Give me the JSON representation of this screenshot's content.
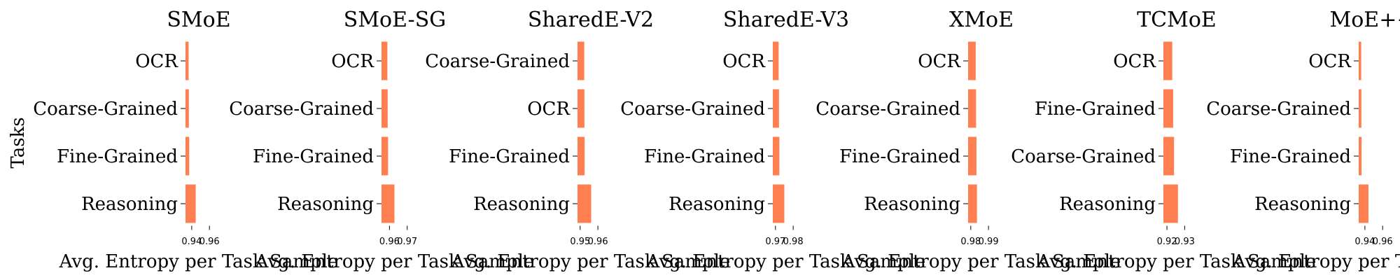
{
  "figure": {
    "shared_ylabel": "Tasks",
    "bar_color": "#ff7f50"
  },
  "chart_data": [
    {
      "type": "bar",
      "orientation": "horizontal",
      "title": "SMoE",
      "xlabel": "Avg. Entropy per Task Sample",
      "ylabel": "Tasks",
      "categories": [
        "OCR",
        "Coarse-Grained",
        "Fine-Grained",
        "Reasoning"
      ],
      "values": [
        0.9365,
        0.9368,
        0.9372,
        0.9445
      ],
      "xticks": [
        "0.94",
        "0.96"
      ],
      "xtick_values": [
        0.94,
        0.96
      ],
      "xlim": [
        0.933,
        0.963
      ],
      "grid": false
    },
    {
      "type": "bar",
      "orientation": "horizontal",
      "title": "SMoE-SG",
      "xlabel": "Avg. Entropy per Task Sample",
      "categories": [
        "OCR",
        "Coarse-Grained",
        "Fine-Grained",
        "Reasoning"
      ],
      "values": [
        0.9588,
        0.959,
        0.9592,
        0.9628
      ],
      "xticks": [
        "0.96",
        "0.97"
      ],
      "xtick_values": [
        0.96,
        0.97
      ],
      "xlim": [
        0.9555,
        0.9705
      ],
      "grid": false
    },
    {
      "type": "bar",
      "orientation": "horizontal",
      "title": "SharedE-V2",
      "xlabel": "Avg. Entropy per Task Sample",
      "categories": [
        "Coarse-Grained",
        "OCR",
        "Fine-Grained",
        "Reasoning"
      ],
      "values": [
        0.9523,
        0.9524,
        0.9525,
        0.9562
      ],
      "xticks": [
        "0.95",
        "0.96"
      ],
      "xtick_values": [
        0.95,
        0.96
      ],
      "xlim": [
        0.9485,
        0.9635
      ],
      "grid": false
    },
    {
      "type": "bar",
      "orientation": "horizontal",
      "title": "SharedE-V3",
      "xlabel": "Avg. Entropy per Task Sample",
      "categories": [
        "OCR",
        "Coarse-Grained",
        "Fine-Grained",
        "Reasoning"
      ],
      "values": [
        0.9718,
        0.972,
        0.9722,
        0.975
      ],
      "xticks": [
        "0.97",
        "0.98"
      ],
      "xtick_values": [
        0.97,
        0.98
      ],
      "xlim": [
        0.9685,
        0.9835
      ],
      "grid": false
    },
    {
      "type": "bar",
      "orientation": "horizontal",
      "title": "XMoE",
      "xlabel": "Avg. Entropy per Task Sample",
      "categories": [
        "OCR",
        "Coarse-Grained",
        "Fine-Grained",
        "Reasoning"
      ],
      "values": [
        0.9828,
        0.983,
        0.9832,
        0.9835
      ],
      "xticks": [
        "0.98",
        "0.99"
      ],
      "xtick_values": [
        0.98,
        0.99
      ],
      "xlim": [
        0.9785,
        0.9935
      ],
      "grid": false
    },
    {
      "type": "bar",
      "orientation": "horizontal",
      "title": "TCMoE",
      "xlabel": "Avg. Entropy per Task Sample",
      "categories": [
        "OCR",
        "Fine-Grained",
        "Coarse-Grained",
        "Reasoning"
      ],
      "values": [
        0.923,
        0.9235,
        0.924,
        0.9262
      ],
      "xticks": [
        "0.92",
        "0.93"
      ],
      "xtick_values": [
        0.92,
        0.93
      ],
      "xlim": [
        0.918,
        0.933
      ],
      "grid": false
    },
    {
      "type": "bar",
      "orientation": "horizontal",
      "title": "MoE++",
      "xlabel": "Avg. Entropy per Task Sample",
      "categories": [
        "OCR",
        "Coarse-Grained",
        "Fine-Grained",
        "Reasoning"
      ],
      "values": [
        0.9358,
        0.936,
        0.9362,
        0.944
      ],
      "xticks": [
        "0.94",
        "0.96"
      ],
      "xtick_values": [
        0.94,
        0.96
      ],
      "xlim": [
        0.933,
        0.963
      ],
      "grid": false
    }
  ]
}
